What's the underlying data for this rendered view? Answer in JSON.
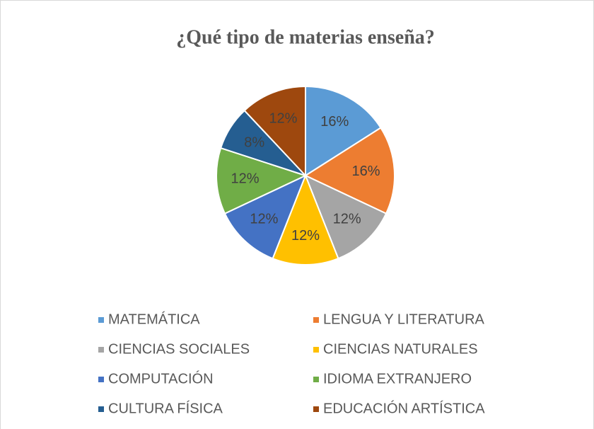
{
  "chart_data": {
    "type": "pie",
    "title": "¿Qué tipo de materias enseña?",
    "categories": [
      "MATEMÁTICA",
      "LENGUA Y LITERATURA",
      "CIENCIAS SOCIALES",
      "CIENCIAS NATURALES",
      "COMPUTACIÓN",
      "IDIOMA EXTRANJERO",
      "CULTURA FÍSICA",
      "EDUCACIÓN ARTÍSTICA"
    ],
    "values": [
      16,
      16,
      12,
      12,
      12,
      12,
      8,
      12
    ],
    "value_labels": [
      "16%",
      "16%",
      "12%",
      "12%",
      "12%",
      "12%",
      "8%",
      "12%"
    ],
    "colors": [
      "#5b9bd5",
      "#ed7d31",
      "#a5a5a5",
      "#ffc000",
      "#4472c4",
      "#70ad47",
      "#255e91",
      "#9e480e"
    ]
  }
}
